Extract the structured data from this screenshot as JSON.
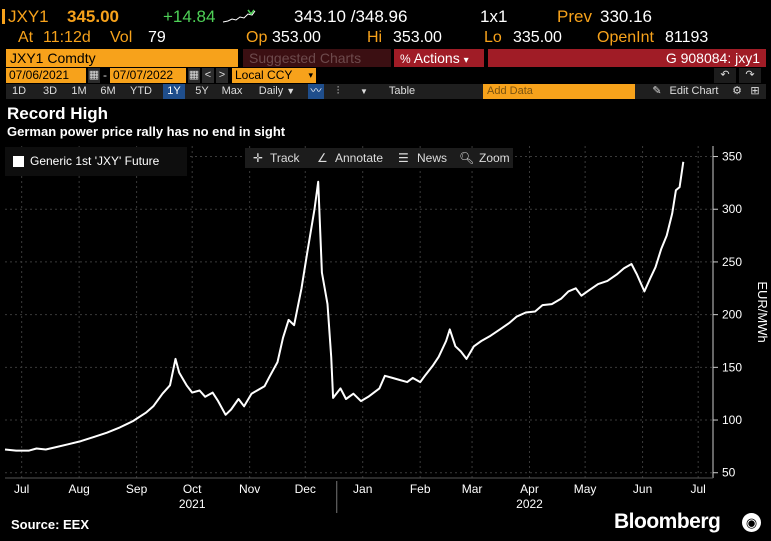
{
  "quote": {
    "ticker": "JXY1",
    "last": "345.00",
    "change": "+14.84",
    "bid_ask": "343.10 /348.96",
    "size": "1x1",
    "prev_label": "Prev",
    "prev": "330.16",
    "time_label": "At",
    "time": "11:12d",
    "vol_label": "Vol",
    "vol": "79",
    "open_label": "Op",
    "open": "353.00",
    "hi_label": "Hi",
    "hi": "353.00",
    "lo_label": "Lo",
    "lo": "335.00",
    "oi_label": "OpenInt",
    "oi": "81193"
  },
  "security_bar": {
    "security": "JXY1 Comdty",
    "suggested": "Suggested Charts",
    "actions": "Actions",
    "actions_arrow": "▾",
    "chart_id": "G 908084: jxy1"
  },
  "dates": {
    "start": "07/06/2021",
    "end": "07/07/2022",
    "dash": "-",
    "currency": "Local CCY"
  },
  "toolbar": {
    "periods": [
      "1D",
      "3D",
      "1M",
      "6M",
      "YTD",
      "1Y",
      "5Y",
      "Max"
    ],
    "selected_period": "1Y",
    "frequency": "Daily",
    "table": "Table",
    "add_data_placeholder": "Add Data",
    "edit_chart": "Edit Chart"
  },
  "chart_tools": {
    "track": "Track",
    "annotate": "Annotate",
    "news": "News",
    "zoom": "Zoom"
  },
  "headline": "Record High",
  "subheadline": "German power price rally has no end in sight",
  "footer": {
    "source": "Source: EEX",
    "brand": "Bloomberg"
  },
  "colors": {
    "amber": "#f7a21b",
    "green": "#4ed157",
    "red_bar": "#a01c26",
    "line": "#ffffff",
    "background": "#000000"
  },
  "chart_data": {
    "type": "line",
    "legend": "Generic 1st 'JXY' Future",
    "ylabel": "EUR/MWh",
    "ylim": [
      45,
      360
    ],
    "yticks": [
      50,
      100,
      150,
      200,
      250,
      300,
      350
    ],
    "xticks": [
      {
        "label": "Jul",
        "date": "2021-07-15"
      },
      {
        "label": "Aug",
        "date": "2021-08-15"
      },
      {
        "label": "Sep",
        "date": "2021-09-15"
      },
      {
        "label": "Oct",
        "date": "2021-10-15"
      },
      {
        "label": "Nov",
        "date": "2021-11-15"
      },
      {
        "label": "Dec",
        "date": "2021-12-15"
      },
      {
        "label": "Jan",
        "date": "2022-01-15"
      },
      {
        "label": "Feb",
        "date": "2022-02-15"
      },
      {
        "label": "Mar",
        "date": "2022-03-15"
      },
      {
        "label": "Apr",
        "date": "2022-04-15"
      },
      {
        "label": "May",
        "date": "2022-05-15"
      },
      {
        "label": "Jun",
        "date": "2022-06-15"
      },
      {
        "label": "Jul",
        "date": "2022-07-15"
      }
    ],
    "years": [
      {
        "label": "2021",
        "date": "2021-10-15"
      },
      {
        "label": "2022",
        "date": "2022-04-15"
      }
    ],
    "year_divider": "2022-01-01",
    "xlim": [
      "2021-07-06",
      "2022-07-23"
    ],
    "grid": true,
    "series": [
      {
        "name": "Generic 1st 'JXY' Future",
        "points": [
          [
            "2021-07-06",
            72
          ],
          [
            "2021-07-12",
            71
          ],
          [
            "2021-07-19",
            71
          ],
          [
            "2021-07-23",
            73
          ],
          [
            "2021-07-28",
            72
          ],
          [
            "2021-08-02",
            74
          ],
          [
            "2021-08-09",
            77
          ],
          [
            "2021-08-16",
            80
          ],
          [
            "2021-08-23",
            84
          ],
          [
            "2021-08-30",
            88
          ],
          [
            "2021-09-06",
            93
          ],
          [
            "2021-09-13",
            99
          ],
          [
            "2021-09-20",
            107
          ],
          [
            "2021-09-24",
            113
          ],
          [
            "2021-09-29",
            125
          ],
          [
            "2021-10-03",
            133
          ],
          [
            "2021-10-06",
            158
          ],
          [
            "2021-10-08",
            145
          ],
          [
            "2021-10-12",
            133
          ],
          [
            "2021-10-15",
            126
          ],
          [
            "2021-10-19",
            128
          ],
          [
            "2021-10-22",
            122
          ],
          [
            "2021-10-26",
            126
          ],
          [
            "2021-10-29",
            118
          ],
          [
            "2021-11-02",
            105
          ],
          [
            "2021-11-05",
            110
          ],
          [
            "2021-11-09",
            120
          ],
          [
            "2021-11-12",
            113
          ],
          [
            "2021-11-16",
            125
          ],
          [
            "2021-11-19",
            128
          ],
          [
            "2021-11-23",
            132
          ],
          [
            "2021-11-26",
            142
          ],
          [
            "2021-11-30",
            155
          ],
          [
            "2021-12-03",
            178
          ],
          [
            "2021-12-06",
            195
          ],
          [
            "2021-12-09",
            190
          ],
          [
            "2021-12-13",
            225
          ],
          [
            "2021-12-16",
            258
          ],
          [
            "2021-12-20",
            300
          ],
          [
            "2021-12-22",
            326
          ],
          [
            "2021-12-24",
            240
          ],
          [
            "2021-12-27",
            210
          ],
          [
            "2021-12-29",
            160
          ],
          [
            "2021-12-30",
            121
          ],
          [
            "2022-01-03",
            130
          ],
          [
            "2022-01-06",
            120
          ],
          [
            "2022-01-10",
            125
          ],
          [
            "2022-01-14",
            118
          ],
          [
            "2022-01-18",
            122
          ],
          [
            "2022-01-24",
            130
          ],
          [
            "2022-01-27",
            142
          ],
          [
            "2022-01-31",
            140
          ],
          [
            "2022-02-04",
            138
          ],
          [
            "2022-02-08",
            136
          ],
          [
            "2022-02-11",
            140
          ],
          [
            "2022-02-15",
            136
          ],
          [
            "2022-02-18",
            143
          ],
          [
            "2022-02-22",
            152
          ],
          [
            "2022-02-25",
            160
          ],
          [
            "2022-03-01",
            175
          ],
          [
            "2022-03-03",
            186
          ],
          [
            "2022-03-06",
            170
          ],
          [
            "2022-03-09",
            165
          ],
          [
            "2022-03-12",
            158
          ],
          [
            "2022-03-16",
            170
          ],
          [
            "2022-03-20",
            175
          ],
          [
            "2022-03-25",
            180
          ],
          [
            "2022-03-30",
            186
          ],
          [
            "2022-04-04",
            192
          ],
          [
            "2022-04-08",
            198
          ],
          [
            "2022-04-13",
            202
          ],
          [
            "2022-04-18",
            203
          ],
          [
            "2022-04-22",
            209
          ],
          [
            "2022-04-27",
            210
          ],
          [
            "2022-05-02",
            215
          ],
          [
            "2022-05-06",
            222
          ],
          [
            "2022-05-10",
            225
          ],
          [
            "2022-05-13",
            218
          ],
          [
            "2022-05-17",
            223
          ],
          [
            "2022-05-22",
            229
          ],
          [
            "2022-05-27",
            232
          ],
          [
            "2022-06-01",
            238
          ],
          [
            "2022-06-05",
            244
          ],
          [
            "2022-06-09",
            248
          ],
          [
            "2022-06-12",
            238
          ],
          [
            "2022-06-16",
            222
          ],
          [
            "2022-06-19",
            234
          ],
          [
            "2022-06-22",
            245
          ],
          [
            "2022-06-25",
            262
          ],
          [
            "2022-06-28",
            275
          ],
          [
            "2022-07-01",
            296
          ],
          [
            "2022-07-03",
            318
          ],
          [
            "2022-07-05",
            321
          ],
          [
            "2022-07-07",
            345
          ]
        ]
      }
    ]
  }
}
